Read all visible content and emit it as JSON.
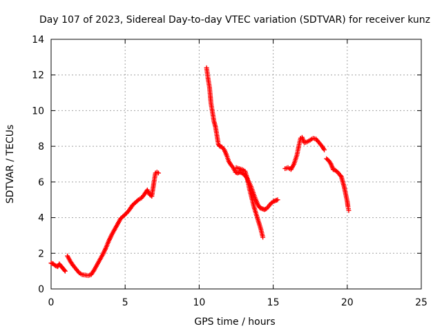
{
  "chart_data": {
    "type": "scatter",
    "title": "Day 107 of 2023, Sidereal Day-to-day VTEC variation (SDTVAR) for receiver kunz",
    "xlabel": "GPS time / hours",
    "ylabel": "SDTVAR / TECUs",
    "xlim": [
      0,
      25
    ],
    "ylim": [
      0,
      14
    ],
    "xticks": [
      0,
      5,
      10,
      15,
      20,
      25
    ],
    "yticks": [
      0,
      2,
      4,
      6,
      8,
      10,
      12,
      14
    ],
    "grid": true,
    "marker": "+",
    "color": "#ff0000",
    "series": [
      {
        "name": "seg1",
        "x": [
          0.0,
          0.15,
          0.3,
          0.45,
          0.55,
          0.65,
          0.75,
          0.85,
          0.95
        ],
        "y": [
          1.45,
          1.4,
          1.3,
          1.25,
          1.4,
          1.3,
          1.2,
          1.1,
          1.0
        ]
      },
      {
        "name": "seg2",
        "x": [
          1.1,
          1.3,
          1.5,
          1.7,
          1.9,
          2.1,
          2.3,
          2.5,
          2.7,
          2.9,
          3.1,
          3.3,
          3.5,
          3.7,
          3.9,
          4.1,
          4.3,
          4.5,
          4.7,
          4.9,
          5.1,
          5.3,
          5.5,
          5.7,
          5.9,
          6.1,
          6.3,
          6.5,
          6.65,
          6.8,
          6.95,
          7.05,
          7.15,
          7.25
        ],
        "y": [
          1.85,
          1.55,
          1.3,
          1.1,
          0.9,
          0.8,
          0.78,
          0.75,
          0.8,
          1.05,
          1.35,
          1.65,
          1.95,
          2.3,
          2.7,
          3.05,
          3.35,
          3.65,
          3.95,
          4.1,
          4.25,
          4.45,
          4.7,
          4.85,
          5.0,
          5.1,
          5.3,
          5.55,
          5.3,
          5.2,
          6.0,
          6.5,
          6.55,
          6.5
        ]
      },
      {
        "name": "seg3",
        "x": [
          10.5,
          10.6,
          10.7,
          10.8,
          10.9,
          11.0,
          11.1,
          11.2,
          11.3,
          11.4,
          11.55,
          11.7,
          11.85,
          12.0,
          12.15,
          12.3,
          12.45,
          12.6,
          12.75,
          12.9,
          13.05,
          13.2,
          13.35,
          13.5,
          13.65,
          13.8,
          13.95,
          14.1,
          14.25,
          14.4,
          14.55,
          14.7,
          14.85,
          15.0,
          15.15,
          15.3
        ],
        "y": [
          12.4,
          11.8,
          11.3,
          10.4,
          9.9,
          9.4,
          9.1,
          8.6,
          8.1,
          8.0,
          7.95,
          7.8,
          7.5,
          7.15,
          6.95,
          6.8,
          6.55,
          6.5,
          6.55,
          6.5,
          6.4,
          6.25,
          6.0,
          5.75,
          5.4,
          5.05,
          4.75,
          4.55,
          4.5,
          4.45,
          4.5,
          4.65,
          4.8,
          4.9,
          4.95,
          5.0
        ]
      },
      {
        "name": "seg4",
        "x": [
          12.5,
          12.7,
          12.9,
          13.1,
          13.25,
          13.4,
          13.55,
          13.7,
          13.85,
          14.0,
          14.15,
          14.3
        ],
        "y": [
          6.8,
          6.75,
          6.7,
          6.6,
          6.2,
          5.6,
          5.1,
          4.6,
          4.2,
          3.8,
          3.4,
          2.9
        ]
      },
      {
        "name": "seg5",
        "x": [
          15.8,
          16.0,
          16.2,
          16.4,
          16.6,
          16.75,
          16.85,
          16.95,
          17.1,
          17.3,
          17.5,
          17.7,
          17.9,
          18.1,
          18.3,
          18.45
        ],
        "y": [
          6.75,
          6.8,
          6.7,
          7.0,
          7.5,
          8.1,
          8.45,
          8.5,
          8.2,
          8.25,
          8.35,
          8.45,
          8.4,
          8.2,
          8.0,
          7.8
        ]
      },
      {
        "name": "seg6",
        "x": [
          18.6,
          18.75,
          18.9,
          19.05,
          19.2,
          19.35,
          19.5,
          19.6,
          19.7,
          19.8,
          19.9,
          20.0,
          20.05,
          20.1
        ],
        "y": [
          7.3,
          7.2,
          7.0,
          6.7,
          6.65,
          6.55,
          6.4,
          6.3,
          6.0,
          5.7,
          5.3,
          4.9,
          4.6,
          4.4
        ]
      }
    ]
  }
}
